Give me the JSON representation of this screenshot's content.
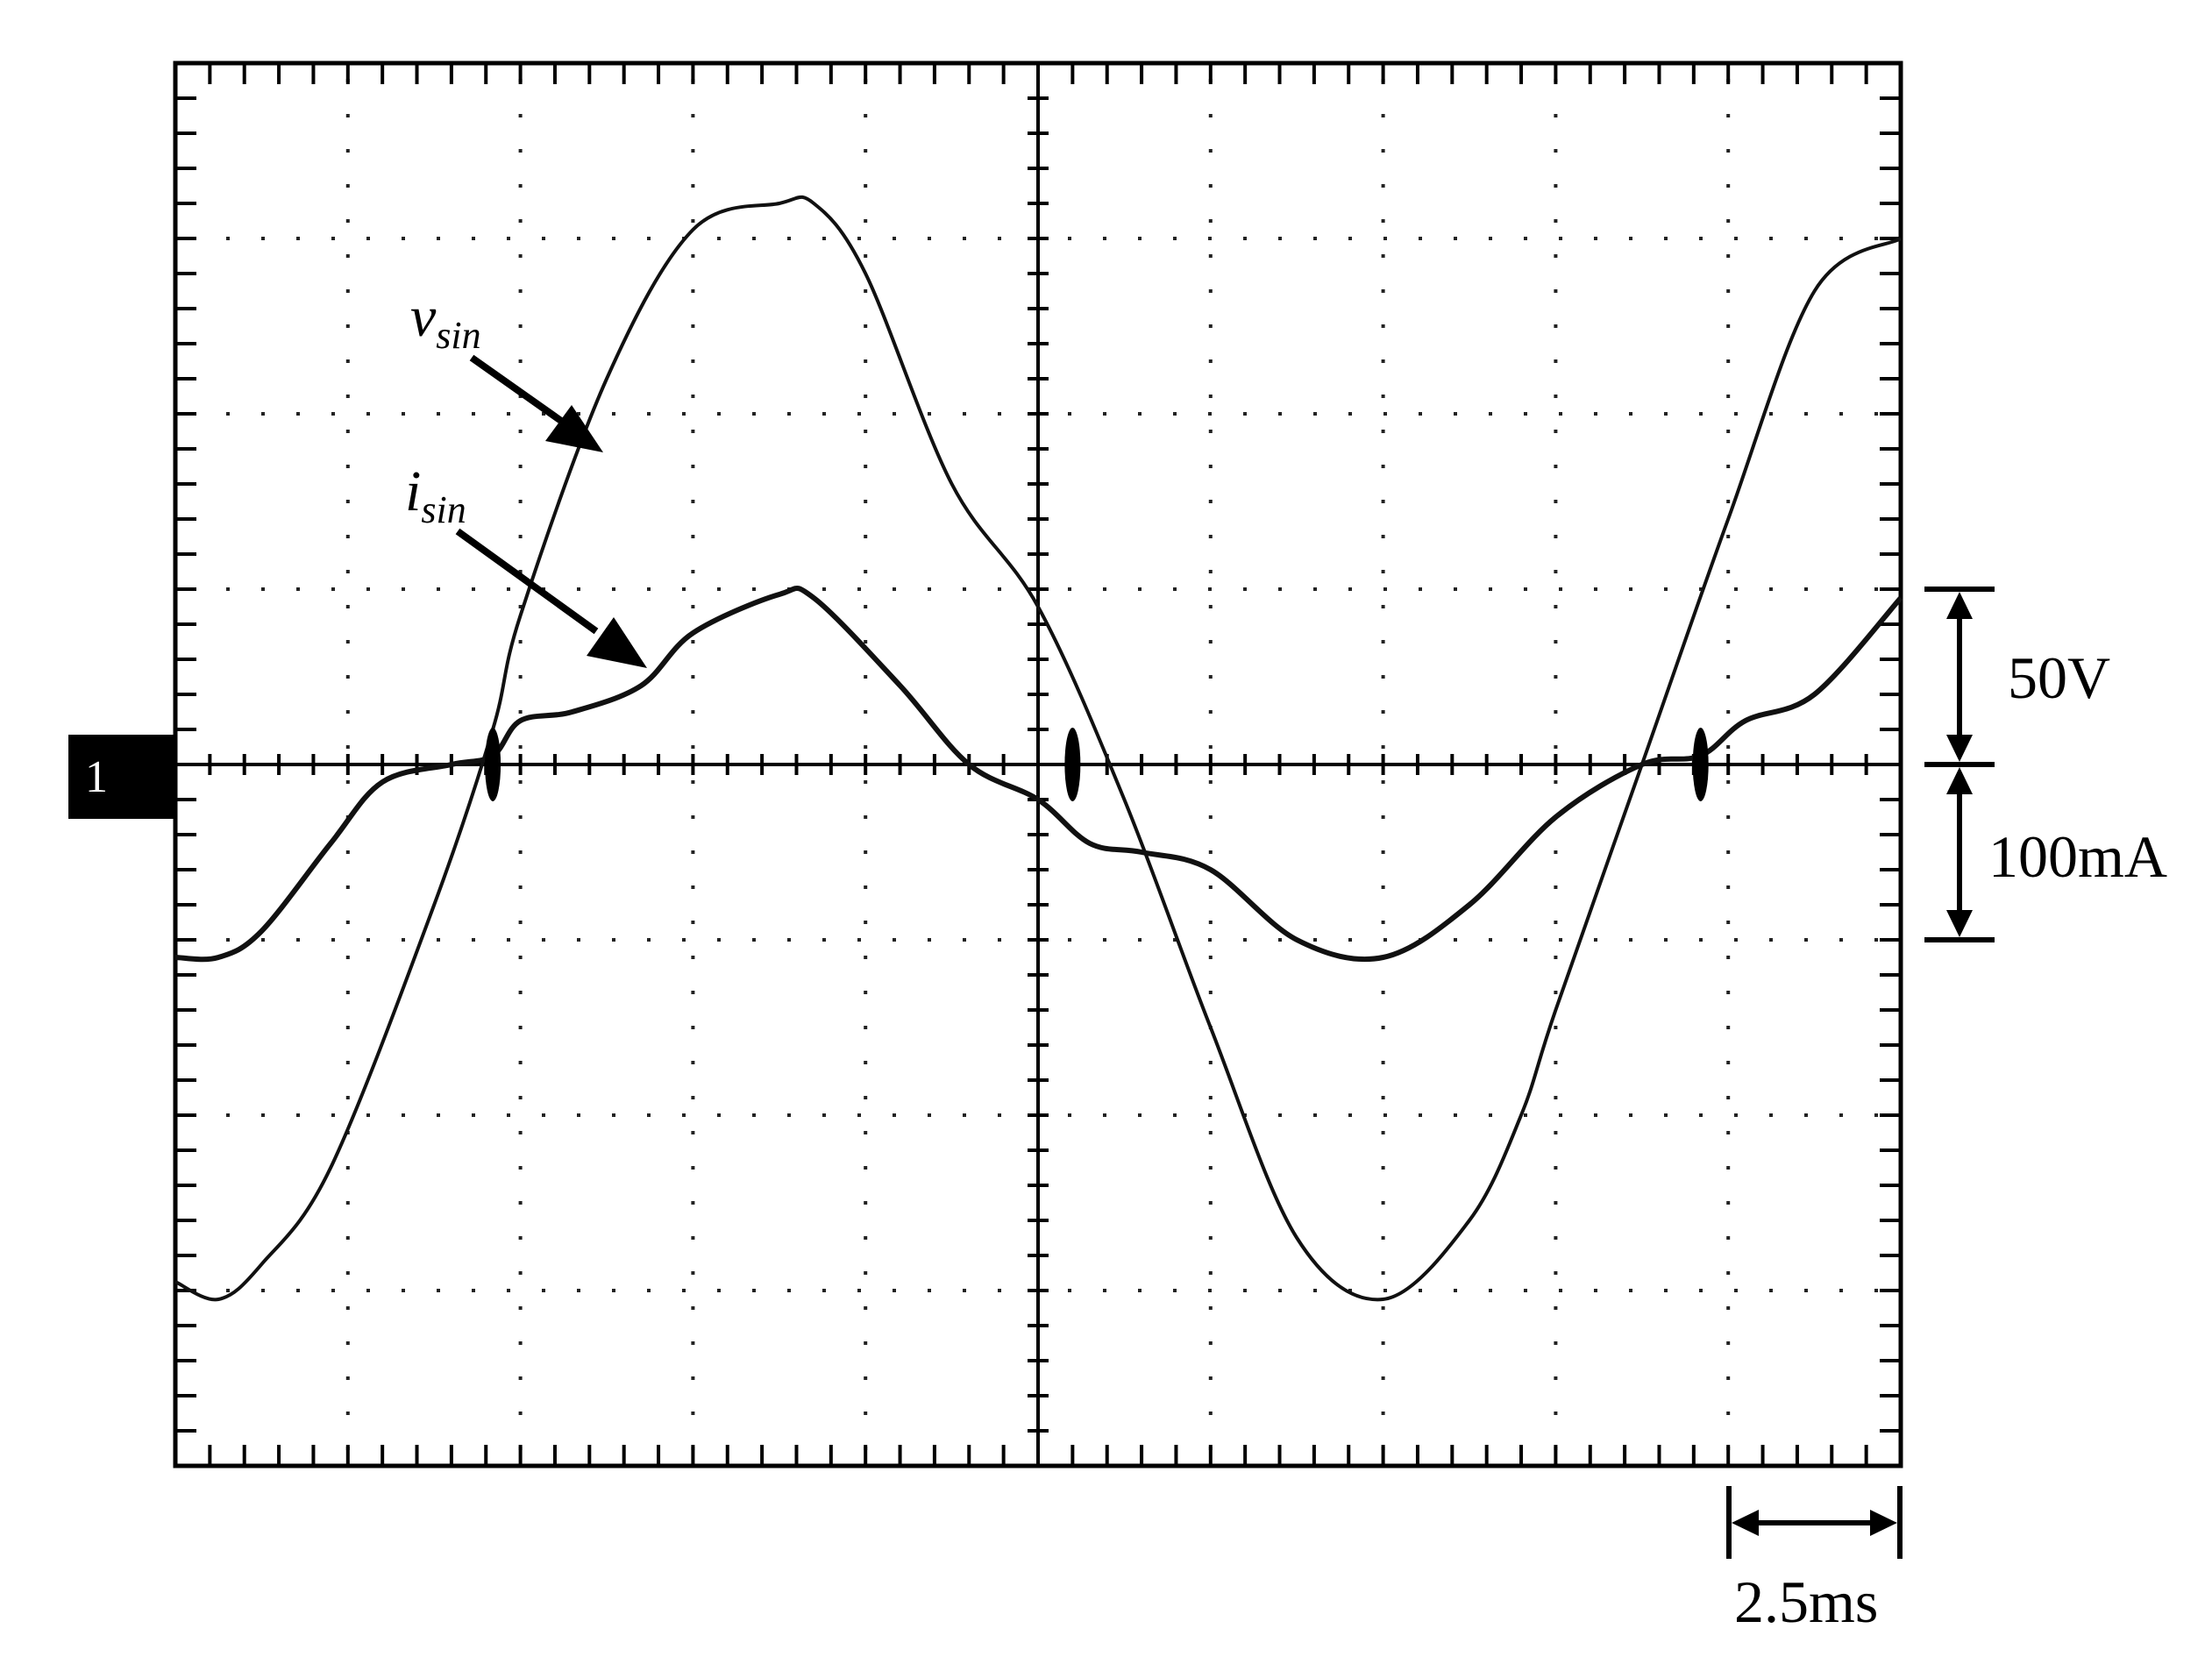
{
  "chart_data": {
    "type": "line",
    "title": "",
    "xlabel": "",
    "ylabel": "",
    "grid": true,
    "divisions": {
      "x": 10,
      "y": 8
    },
    "subdivisions_per_div": 5,
    "xlim": [
      0,
      10
    ],
    "ylim": [
      -4,
      4
    ],
    "ground_marker": "1",
    "series": [
      {
        "symbol": "v",
        "subscript": "sin",
        "x": [
          0,
          0.25,
          0.5,
          0.9,
          1.5,
          1.84,
          2.0,
          2.5,
          3.0,
          3.5,
          3.7,
          4.0,
          4.5,
          5.0,
          5.5,
          6.0,
          6.5,
          7.0,
          7.5,
          7.8,
          8.0,
          8.5,
          9.0,
          9.5,
          10.0
        ],
        "y": [
          -2.95,
          -3.05,
          -2.85,
          -2.3,
          -0.8,
          0.2,
          0.85,
          2.2,
          3.05,
          3.2,
          3.2,
          2.8,
          1.6,
          0.9,
          -0.2,
          -1.5,
          -2.7,
          -3.05,
          -2.6,
          -2.0,
          -1.4,
          0.0,
          1.4,
          2.7,
          3.0
        ]
      },
      {
        "symbol": "i",
        "subscript": "sin",
        "x": [
          0,
          0.25,
          0.5,
          0.9,
          1.2,
          1.6,
          1.84,
          2.0,
          2.3,
          2.7,
          3.0,
          3.5,
          3.7,
          4.2,
          4.6,
          5.0,
          5.3,
          5.6,
          6.0,
          6.5,
          7.0,
          7.5,
          8.0,
          8.5,
          8.84,
          9.1,
          9.5,
          10.0
        ],
        "y": [
          -1.1,
          -1.1,
          -0.95,
          -0.45,
          -0.1,
          0.0,
          0.05,
          0.25,
          0.3,
          0.45,
          0.75,
          0.97,
          0.95,
          0.45,
          0.0,
          -0.2,
          -0.45,
          -0.5,
          -0.6,
          -1.0,
          -1.1,
          -0.8,
          -0.3,
          0.0,
          0.05,
          0.25,
          0.4,
          0.95
        ]
      }
    ],
    "annotations": {
      "voltage_scale": "50V",
      "current_scale": "100mA",
      "time_scale": "2.5ms"
    }
  }
}
